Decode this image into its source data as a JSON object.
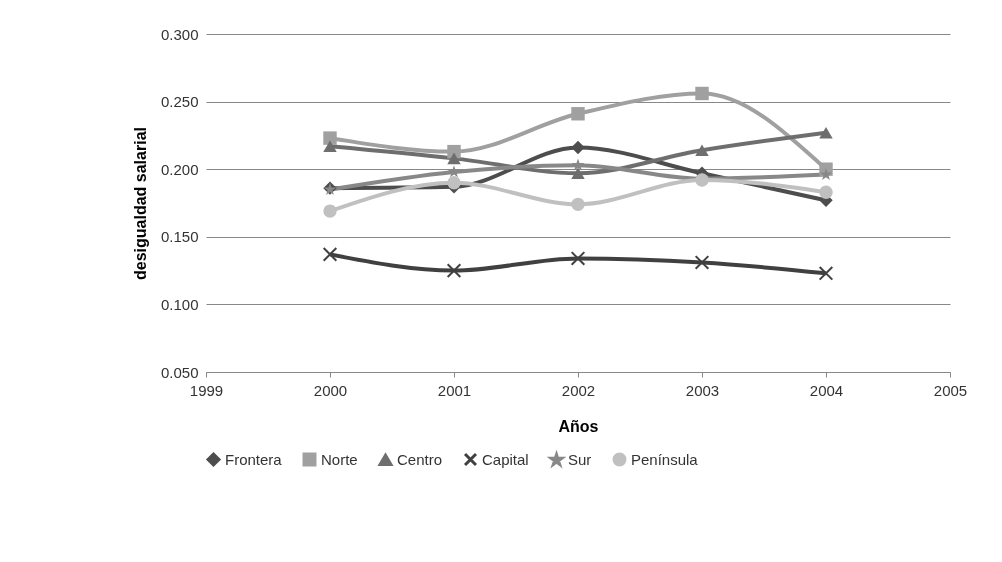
{
  "chart_data": {
    "type": "line",
    "xlabel": "Años",
    "ylabel": "desigualdad salarial",
    "x": [
      2000,
      2001,
      2002,
      2003,
      2004
    ],
    "xlim": [
      1999,
      2005
    ],
    "xticks": [
      1999,
      2000,
      2001,
      2002,
      2003,
      2004,
      2005
    ],
    "ylim": [
      0.05,
      0.3
    ],
    "yticks": [
      {
        "value": 0.05,
        "label": "0.050"
      },
      {
        "value": 0.1,
        "label": "0.100"
      },
      {
        "value": 0.15,
        "label": "0.150"
      },
      {
        "value": 0.2,
        "label": "0.200"
      },
      {
        "value": 0.25,
        "label": "0.250"
      },
      {
        "value": 0.3,
        "label": "0.300"
      }
    ],
    "grid": "y",
    "legend": "bottom",
    "series": [
      {
        "name": "Frontera",
        "color": "#4d4d4d",
        "marker": "diamond",
        "values": [
          0.186,
          0.187,
          0.216,
          0.197,
          0.177
        ]
      },
      {
        "name": "Norte",
        "color": "#a0a0a0",
        "marker": "square",
        "values": [
          0.223,
          0.213,
          0.241,
          0.256,
          0.2
        ]
      },
      {
        "name": "Centro",
        "color": "#6e6e6e",
        "marker": "triangle",
        "values": [
          0.217,
          0.208,
          0.197,
          0.214,
          0.227
        ]
      },
      {
        "name": "Capital",
        "color": "#404040",
        "marker": "cross",
        "values": [
          0.137,
          0.125,
          0.134,
          0.131,
          0.123
        ]
      },
      {
        "name": "Sur",
        "color": "#888888",
        "marker": "star",
        "values": [
          0.185,
          0.198,
          0.203,
          0.193,
          0.196
        ]
      },
      {
        "name": "Península",
        "color": "#c0c0c0",
        "marker": "circle",
        "values": [
          0.169,
          0.19,
          0.174,
          0.192,
          0.183
        ]
      }
    ]
  }
}
